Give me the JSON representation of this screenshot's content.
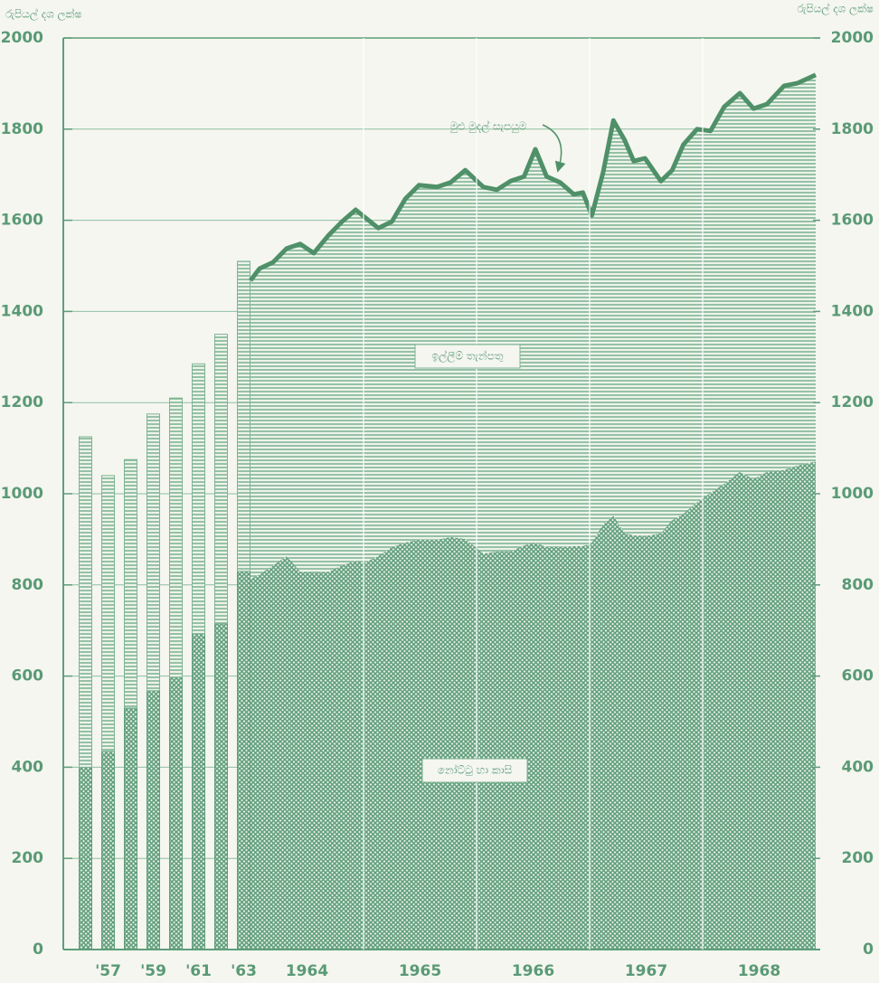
{
  "chart_data": [
    {
      "type": "bar",
      "stacked": true,
      "ylabel": "රුපියල් දශ ලක්ෂ",
      "categories": [
        null,
        "'57",
        null,
        "'59",
        null,
        "'61",
        null,
        "'63"
      ],
      "series": [
        {
          "color": "#5f9e7b",
          "pattern": "cross",
          "values": [
            400,
            435,
            530,
            568,
            597,
            693,
            715,
            830
          ]
        },
        {
          "color": "#7fb595",
          "pattern": "stripes",
          "values": [
            725,
            605,
            545,
            607,
            613,
            592,
            635,
            680
          ]
        }
      ],
      "ylim": [
        0,
        2000
      ],
      "yticks": [
        0,
        200,
        400,
        600,
        800,
        1000,
        1200,
        1400,
        1600,
        1800,
        2000
      ],
      "grid": true
    },
    {
      "type": "area",
      "stacked": true,
      "y2label": "රුපියල් දශ ලක්ෂ",
      "annotation": "මුළු මුදල් සැපයුම",
      "x": [
        1964.0,
        1964.08,
        1964.2,
        1964.32,
        1964.44,
        1964.56,
        1964.69,
        1964.81,
        1964.93,
        1965.01,
        1965.13,
        1965.25,
        1965.37,
        1965.49,
        1965.65,
        1965.77,
        1965.9,
        1966.06,
        1966.18,
        1966.3,
        1966.42,
        1966.52,
        1966.62,
        1966.74,
        1966.86,
        1966.94,
        1967.02,
        1967.12,
        1967.21,
        1967.31,
        1967.39,
        1967.49,
        1967.63,
        1967.73,
        1967.83,
        1967.95,
        1968.07,
        1968.19,
        1968.33,
        1968.45,
        1968.57,
        1968.72,
        1968.84,
        1969.0
      ],
      "series": [
        {
          "name": "නෝට්ටු හා කාසි",
          "color": "#5f9e7b",
          "pattern": "cross",
          "values": [
            813,
            823,
            843,
            863,
            829,
            827,
            829,
            843,
            853,
            849,
            863,
            883,
            893,
            899,
            899,
            905,
            901,
            869,
            873,
            873,
            887,
            893,
            883,
            883,
            885,
            885,
            893,
            933,
            952,
            913,
            909,
            907,
            913,
            942,
            956,
            982,
            1002,
            1022,
            1048,
            1032,
            1048,
            1052,
            1062,
            1071
          ]
        },
        {
          "name": "ඉල්ලීම් තැන්පතු",
          "color": "#7fb595",
          "pattern": "stripes",
          "line_color": "#4f9068",
          "values": [
            655,
            671,
            665,
            675,
            719,
            701,
            738,
            754,
            770,
            758,
            720,
            714,
            754,
            778,
            774,
            778,
            809,
            804,
            794,
            813,
            809,
            863,
            813,
            800,
            772,
            776,
            718,
            773,
            867,
            863,
            821,
            829,
            773,
            768,
            810,
            818,
            794,
            827,
            831,
            813,
            807,
            843,
            839,
            848
          ]
        }
      ],
      "xlim": [
        1964,
        1969
      ],
      "xticks": [
        {
          "value": 1964.5,
          "label": "1964"
        },
        {
          "value": 1965.5,
          "label": "1965"
        },
        {
          "value": 1966.5,
          "label": "1966"
        },
        {
          "value": 1967.5,
          "label": "1967"
        },
        {
          "value": 1968.5,
          "label": "1968"
        }
      ],
      "xgrid": [
        1965,
        1966,
        1967,
        1968
      ],
      "y2lim": [
        0,
        2000
      ],
      "y2ticks": [
        0,
        200,
        400,
        600,
        800,
        1000,
        1200,
        1400,
        1600,
        1800,
        2000
      ]
    }
  ]
}
